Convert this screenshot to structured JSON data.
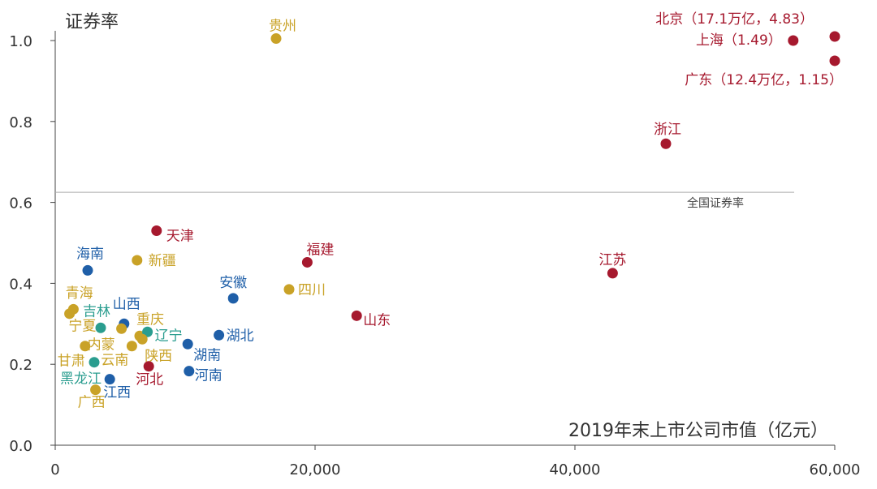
{
  "chart_data": {
    "type": "scatter",
    "title": "",
    "ylabel": "证券率",
    "xlabel": "2019年末上市公司市值（亿元）",
    "xlim": [
      0,
      60000
    ],
    "ylim": [
      0,
      1.0
    ],
    "x_ticks": [
      "0",
      "20,000",
      "40,000",
      "60,000"
    ],
    "y_ticks": [
      "0.0",
      "0.2",
      "0.4",
      "0.6",
      "0.8",
      "1.0"
    ],
    "reference_line": {
      "label": "全国证券率",
      "value": 0.625
    },
    "grid": false,
    "colors": {
      "red": "#a6192e",
      "gold": "#c9a227",
      "blue": "#1f5fa8",
      "teal": "#2a9d8f"
    },
    "points": [
      {
        "name": "北京",
        "label": "北京（17.1万亿，4.83）",
        "x": 60000,
        "y": 1.01,
        "color": "red"
      },
      {
        "name": "上海",
        "label": "上海（1.49）",
        "x": 56800,
        "y": 1.0,
        "color": "red"
      },
      {
        "name": "广东",
        "label": "广东（12.4万亿，1.15）",
        "x": 60000,
        "y": 0.95,
        "color": "red"
      },
      {
        "name": "贵州",
        "label": "贵州",
        "x": 17000,
        "y": 1.005,
        "color": "gold"
      },
      {
        "name": "浙江",
        "label": "浙江",
        "x": 47000,
        "y": 0.745,
        "color": "red"
      },
      {
        "name": "江苏",
        "label": "江苏",
        "x": 42900,
        "y": 0.425,
        "color": "red"
      },
      {
        "name": "天津",
        "label": "天津",
        "x": 7800,
        "y": 0.53,
        "color": "red"
      },
      {
        "name": "福建",
        "label": "福建",
        "x": 19400,
        "y": 0.452,
        "color": "red"
      },
      {
        "name": "山东",
        "label": "山东",
        "x": 23200,
        "y": 0.32,
        "color": "red"
      },
      {
        "name": "河北",
        "label": "河北",
        "x": 7200,
        "y": 0.195,
        "color": "red"
      },
      {
        "name": "海南",
        "label": "海南",
        "x": 2500,
        "y": 0.432,
        "color": "blue"
      },
      {
        "name": "新疆",
        "label": "新疆",
        "x": 6300,
        "y": 0.457,
        "color": "gold"
      },
      {
        "name": "安徽",
        "label": "安徽",
        "x": 13700,
        "y": 0.363,
        "color": "blue"
      },
      {
        "name": "四川",
        "label": "四川",
        "x": 18000,
        "y": 0.385,
        "color": "gold"
      },
      {
        "name": "青海",
        "label": "青海",
        "x": 1100,
        "y": 0.325,
        "color": "gold"
      },
      {
        "name": "吉林",
        "label": "吉林",
        "x": 3500,
        "y": 0.29,
        "color": "teal"
      },
      {
        "name": "山西",
        "label": "山西",
        "x": 5300,
        "y": 0.3,
        "color": "blue"
      },
      {
        "name": "重庆",
        "label": "重庆",
        "x": 6500,
        "y": 0.27,
        "color": "gold"
      },
      {
        "name": "宁夏",
        "label": "宁夏",
        "x": 1400,
        "y": 0.336,
        "color": "gold"
      },
      {
        "name": "内蒙",
        "label": "内蒙",
        "x": 5100,
        "y": 0.288,
        "color": "gold"
      },
      {
        "name": "辽宁",
        "label": "辽宁",
        "x": 7100,
        "y": 0.28,
        "color": "teal"
      },
      {
        "name": "陕西",
        "label": "陕西",
        "x": 6700,
        "y": 0.262,
        "color": "gold"
      },
      {
        "name": "湖北",
        "label": "湖北",
        "x": 12600,
        "y": 0.272,
        "color": "blue"
      },
      {
        "name": "湖南",
        "label": "湖南",
        "x": 10200,
        "y": 0.25,
        "color": "blue"
      },
      {
        "name": "甘肃",
        "label": "甘肃",
        "x": 2300,
        "y": 0.245,
        "color": "gold"
      },
      {
        "name": "云南",
        "label": "云南",
        "x": 5900,
        "y": 0.245,
        "color": "gold"
      },
      {
        "name": "河南",
        "label": "河南",
        "x": 10300,
        "y": 0.183,
        "color": "blue"
      },
      {
        "name": "黑龙江",
        "label": "黑龙江",
        "x": 3000,
        "y": 0.205,
        "color": "teal"
      },
      {
        "name": "江西",
        "label": "江西",
        "x": 4200,
        "y": 0.163,
        "color": "blue"
      },
      {
        "name": "广西",
        "label": "广西",
        "x": 3100,
        "y": 0.137,
        "color": "gold"
      }
    ]
  }
}
